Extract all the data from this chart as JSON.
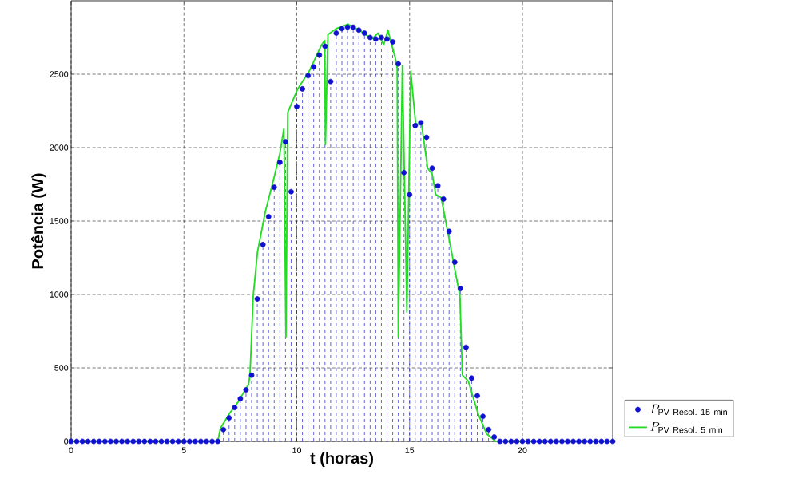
{
  "chart_data": {
    "type": "line",
    "xlabel": "t (horas)",
    "ylabel": "Potência (W)",
    "xlim": [
      0,
      24
    ],
    "ylim": [
      0,
      3000
    ],
    "xticks": [
      0,
      5,
      10,
      15,
      20
    ],
    "yticks": [
      0,
      500,
      1000,
      1500,
      2000,
      2500
    ],
    "grid": true,
    "legend": "bottom right",
    "series": [
      {
        "name": "P_{\\mathrm{PV\\ Resol.\\ 15\\ min}}",
        "type": "lollipop",
        "color": "#1010d0",
        "marker": "circle",
        "line_style": "dashed",
        "x": [
          0,
          0.25,
          0.5,
          0.75,
          1,
          1.25,
          1.5,
          1.75,
          2,
          2.25,
          2.5,
          2.75,
          3,
          3.25,
          3.5,
          3.75,
          4,
          4.25,
          4.5,
          4.75,
          5,
          5.25,
          5.5,
          5.75,
          6,
          6.25,
          6.5,
          6.75,
          7,
          7.25,
          7.5,
          7.75,
          8,
          8.25,
          8.5,
          8.75,
          9,
          9.25,
          9.5,
          9.75,
          10,
          10.25,
          10.5,
          10.75,
          11,
          11.25,
          11.5,
          11.75,
          12,
          12.25,
          12.5,
          12.75,
          13,
          13.25,
          13.5,
          13.75,
          14,
          14.25,
          14.5,
          14.75,
          15,
          15.25,
          15.5,
          15.75,
          16,
          16.25,
          16.5,
          16.75,
          17,
          17.25,
          17.5,
          17.75,
          18,
          18.25,
          18.5,
          18.75,
          19,
          19.25,
          19.5,
          19.75,
          20,
          20.25,
          20.5,
          20.75,
          21,
          21.25,
          21.5,
          21.75,
          22,
          22.25,
          22.5,
          22.75,
          23,
          23.25,
          23.5,
          23.75,
          24
        ],
        "values": [
          0,
          0,
          0,
          0,
          0,
          0,
          0,
          0,
          0,
          0,
          0,
          0,
          0,
          0,
          0,
          0,
          0,
          0,
          0,
          0,
          0,
          0,
          0,
          0,
          0,
          0,
          0,
          80,
          160,
          230,
          290,
          350,
          450,
          970,
          1340,
          1530,
          1730,
          1900,
          2040,
          1700,
          2280,
          2400,
          2490,
          2550,
          2630,
          2690,
          2450,
          2780,
          2810,
          2820,
          2820,
          2800,
          2780,
          2750,
          2740,
          2750,
          2740,
          2720,
          2570,
          1830,
          1680,
          2150,
          2170,
          2070,
          1860,
          1740,
          1650,
          1430,
          1220,
          1040,
          640,
          430,
          310,
          170,
          80,
          30,
          0,
          0,
          0,
          0,
          0,
          0,
          0,
          0,
          0,
          0,
          0,
          0,
          0,
          0,
          0,
          0,
          0,
          0,
          0,
          0,
          0
        ]
      },
      {
        "name": "P_{\\mathrm{PV\\ Resol.\\ 5\\ min}}",
        "color": "#22dd22",
        "marker": "none",
        "line_style": "solid",
        "x": [
          0,
          6.5,
          6.62,
          7.02,
          7.41,
          7.87,
          7.93,
          8.07,
          8.26,
          8.6,
          9.0,
          9.25,
          9.43,
          9.52,
          9.6,
          10.04,
          10.55,
          11.1,
          11.24,
          11.27,
          11.38,
          11.75,
          12.27,
          12.77,
          13.33,
          13.6,
          13.85,
          14.04,
          14.38,
          14.45,
          14.5,
          14.68,
          14.88,
          15.05,
          15.27,
          15.53,
          15.8,
          16.0,
          16.16,
          16.4,
          17.23,
          17.34,
          17.6,
          18.03,
          18.42,
          18.82,
          24
        ],
        "values": [
          0,
          0,
          90,
          190,
          270,
          390,
          460,
          990,
          1290,
          1560,
          1800,
          1960,
          2130,
          710,
          2240,
          2400,
          2520,
          2700,
          2730,
          2020,
          2770,
          2810,
          2840,
          2800,
          2740,
          2780,
          2700,
          2800,
          2600,
          2540,
          710,
          2560,
          880,
          2520,
          2160,
          2160,
          1860,
          1820,
          1680,
          1660,
          990,
          450,
          410,
          190,
          50,
          0,
          0
        ]
      }
    ]
  }
}
